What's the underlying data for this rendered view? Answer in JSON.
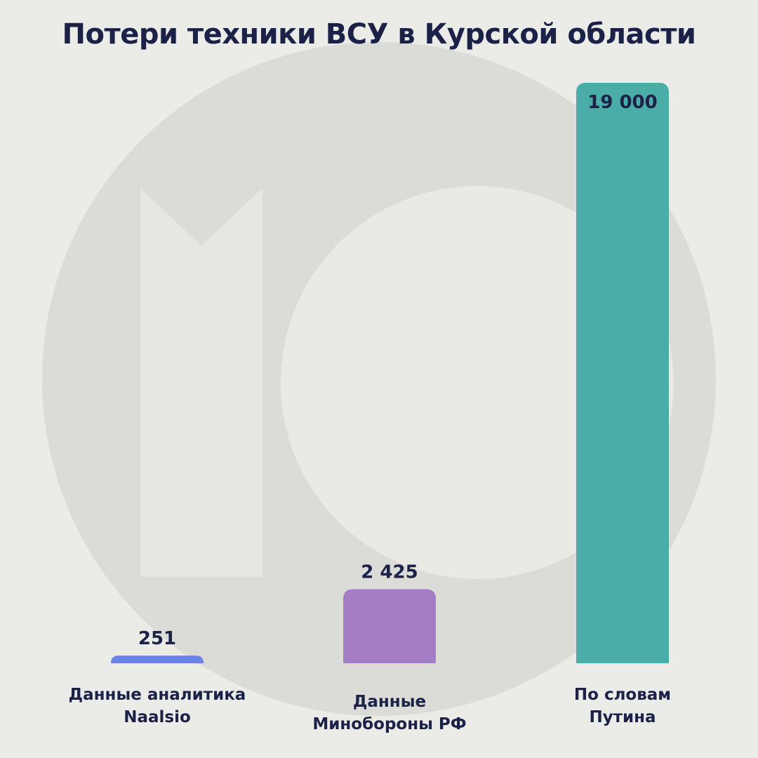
{
  "chart_data": {
    "type": "bar",
    "title": "Потери техники ВСУ в Курской области",
    "categories": [
      "Данные аналитика Naalsio",
      "Данные Минобороны РФ",
      "По словам Путина"
    ],
    "category_lines": [
      [
        "Данные аналитика",
        "Naalsio"
      ],
      [
        "Данные",
        "Минобороны РФ"
      ],
      [
        "По словам",
        "Путина"
      ]
    ],
    "values": [
      251,
      2425,
      19000
    ],
    "value_labels": [
      "251",
      "2 425",
      "19 000"
    ],
    "colors": [
      "#6b83e6",
      "#a37ec4",
      "#4aada8"
    ],
    "ylim": [
      0,
      19000
    ],
    "grid": false,
    "legend": "none"
  }
}
